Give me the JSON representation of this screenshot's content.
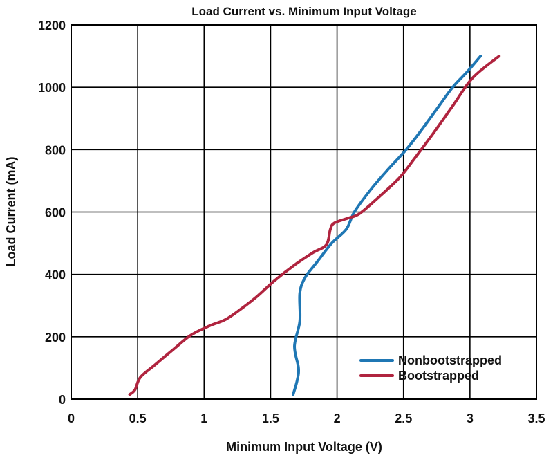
{
  "chart_data": {
    "type": "line",
    "title": "Load Current vs. Minimum Input Voltage",
    "xlabel": "Minimum Input Voltage (V)",
    "ylabel": "Load Current (mA)",
    "xlim": [
      0,
      3.5
    ],
    "ylim": [
      0,
      1200
    ],
    "x_ticks": [
      0,
      0.5,
      1,
      1.5,
      2,
      2.5,
      3,
      3.5
    ],
    "x_tick_labels": [
      "0",
      "0.5",
      "1",
      "1.5",
      "2",
      "2.5",
      "3",
      "3.5"
    ],
    "y_ticks": [
      0,
      200,
      400,
      600,
      800,
      1000,
      1200
    ],
    "y_tick_labels": [
      "0",
      "200",
      "400",
      "600",
      "800",
      "1000",
      "1200"
    ],
    "grid": true,
    "legend_position": "bottom-right",
    "series": [
      {
        "name": "Nonbootstrapped",
        "color": "#1f77b4",
        "points": [
          [
            1.67,
            15
          ],
          [
            1.7,
            60
          ],
          [
            1.71,
            100
          ],
          [
            1.68,
            170
          ],
          [
            1.72,
            250
          ],
          [
            1.72,
            340
          ],
          [
            1.76,
            390
          ],
          [
            1.85,
            440
          ],
          [
            1.96,
            500
          ],
          [
            2.07,
            545
          ],
          [
            2.13,
            600
          ],
          [
            2.25,
            670
          ],
          [
            2.37,
            730
          ],
          [
            2.52,
            800
          ],
          [
            2.63,
            860
          ],
          [
            2.75,
            930
          ],
          [
            2.87,
            1000
          ],
          [
            2.98,
            1050
          ],
          [
            3.08,
            1100
          ]
        ]
      },
      {
        "name": "Bootstrapped",
        "color": "#b0243f",
        "points": [
          [
            0.44,
            15
          ],
          [
            0.48,
            30
          ],
          [
            0.52,
            70
          ],
          [
            0.63,
            110
          ],
          [
            0.77,
            160
          ],
          [
            0.9,
            205
          ],
          [
            1.04,
            235
          ],
          [
            1.16,
            255
          ],
          [
            1.28,
            290
          ],
          [
            1.4,
            330
          ],
          [
            1.53,
            380
          ],
          [
            1.68,
            430
          ],
          [
            1.82,
            470
          ],
          [
            1.92,
            495
          ],
          [
            1.95,
            545
          ],
          [
            1.98,
            565
          ],
          [
            2.08,
            580
          ],
          [
            2.17,
            595
          ],
          [
            2.32,
            650
          ],
          [
            2.47,
            710
          ],
          [
            2.58,
            770
          ],
          [
            2.72,
            850
          ],
          [
            2.87,
            940
          ],
          [
            3.02,
            1030
          ],
          [
            3.22,
            1100
          ]
        ]
      }
    ]
  }
}
